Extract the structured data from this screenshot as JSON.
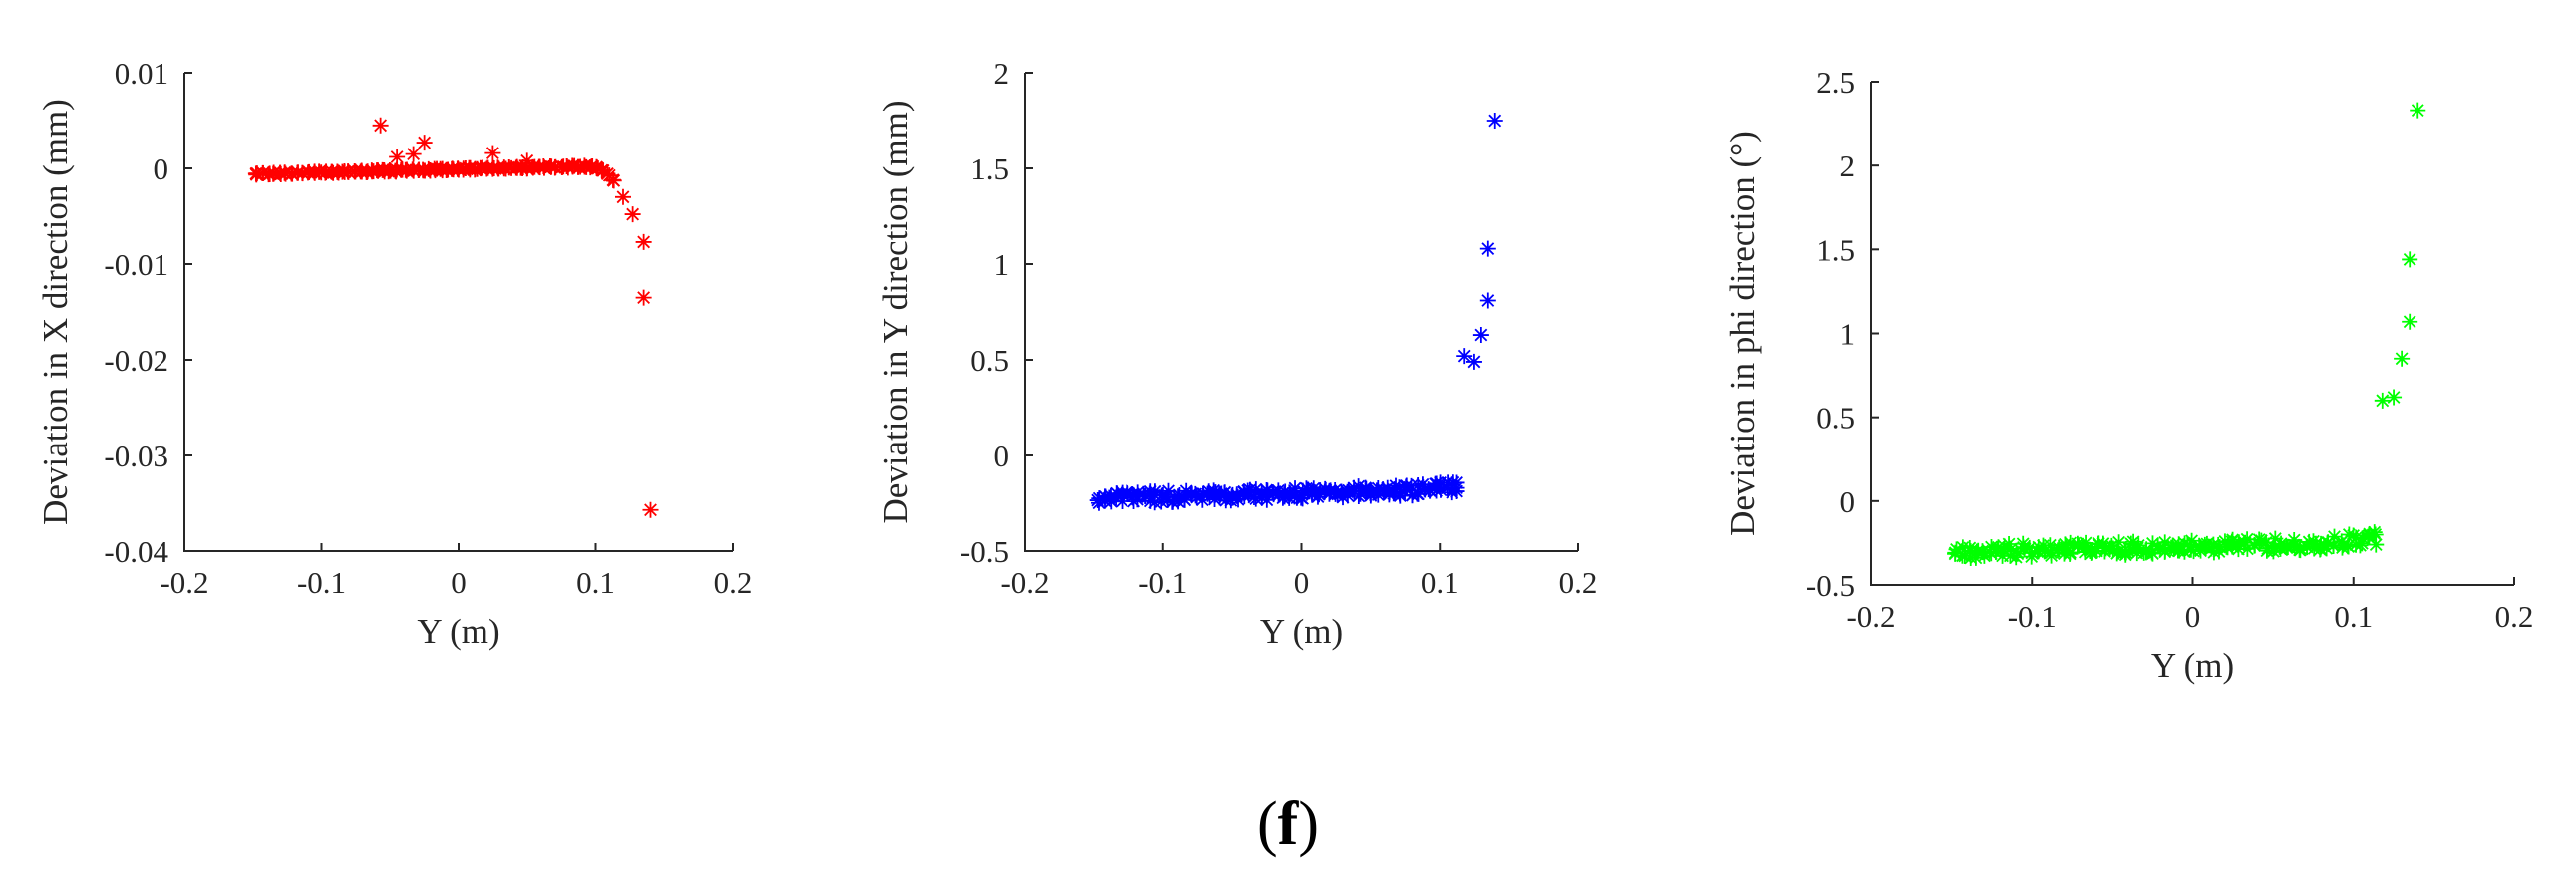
{
  "caption": {
    "open": "(",
    "letter": "f",
    "close": ")"
  },
  "chart_data": [
    {
      "type": "scatter",
      "title": "",
      "xlabel": "Y (m)",
      "ylabel": "Deviation in X direction  (mm)",
      "xlim": [
        -0.2,
        0.2
      ],
      "ylim": [
        -0.04,
        0.01
      ],
      "xticks": [
        -0.2,
        -0.1,
        0,
        0.1,
        0.2
      ],
      "xtick_labels": [
        "-0.2",
        "-0.1",
        "0",
        "0.1",
        "0.2"
      ],
      "yticks": [
        -0.04,
        -0.03,
        -0.02,
        -0.01,
        0,
        0.01
      ],
      "ytick_labels": [
        "-0.04",
        "-0.03",
        "-0.02",
        "-0.01",
        "0",
        "0.01"
      ],
      "marker": "*",
      "color": "#ff0000",
      "curve": "x-flat",
      "band": 0.0002,
      "outliers": [
        [
          -0.057,
          0.0045
        ],
        [
          -0.045,
          0.0012
        ],
        [
          -0.033,
          0.0015
        ],
        [
          -0.025,
          0.0027
        ],
        [
          0.025,
          0.0016
        ],
        [
          0.05,
          0.0008
        ],
        [
          0.12,
          -0.003
        ],
        [
          0.127,
          -0.0048
        ],
        [
          0.135,
          -0.0077
        ],
        [
          0.135,
          -0.0135
        ],
        [
          0.14,
          -0.0357
        ]
      ]
    },
    {
      "type": "scatter",
      "title": "",
      "xlabel": "Y (m)",
      "ylabel": "Deviation in Y direction  (mm)",
      "xlim": [
        -0.2,
        0.2
      ],
      "ylim": [
        -0.5,
        2
      ],
      "xticks": [
        -0.2,
        -0.1,
        0,
        0.1,
        0.2
      ],
      "xtick_labels": [
        "-0.2",
        "-0.1",
        "0",
        "0.1",
        "0.2"
      ],
      "yticks": [
        -0.5,
        0,
        0.5,
        1,
        1.5,
        2
      ],
      "ytick_labels": [
        "-0.5",
        "0",
        "0.5",
        "1",
        "1.5",
        "2"
      ],
      "marker": "*",
      "color": "#0000ff",
      "curve": "y-rise",
      "band": 0.06,
      "outliers": [
        [
          0.118,
          0.52
        ],
        [
          0.125,
          0.49
        ],
        [
          0.13,
          0.63
        ],
        [
          0.135,
          0.81
        ],
        [
          0.135,
          1.08
        ],
        [
          0.14,
          1.75
        ]
      ]
    },
    {
      "type": "scatter",
      "title": "",
      "xlabel": "Y (m)",
      "ylabel": "Deviation in phi direction   (°)",
      "xlim": [
        -0.2,
        0.2
      ],
      "ylim": [
        -0.5,
        2.5
      ],
      "xticks": [
        -0.2,
        -0.1,
        0,
        0.1,
        0.2
      ],
      "xtick_labels": [
        "-0.2",
        "-0.1",
        "0",
        "0.1",
        "0.2"
      ],
      "yticks": [
        -0.5,
        0,
        0.5,
        1,
        1.5,
        2,
        2.5
      ],
      "ytick_labels": [
        "-0.5",
        "0",
        "0.5",
        "1",
        "1.5",
        "2",
        "2.5"
      ],
      "marker": "*",
      "color": "#00ff00",
      "curve": "phi-rise",
      "band": 0.08,
      "outliers": [
        [
          0.118,
          0.6
        ],
        [
          0.125,
          0.62
        ],
        [
          0.13,
          0.85
        ],
        [
          0.135,
          1.07
        ],
        [
          0.135,
          1.44
        ],
        [
          0.14,
          2.33
        ]
      ]
    }
  ]
}
